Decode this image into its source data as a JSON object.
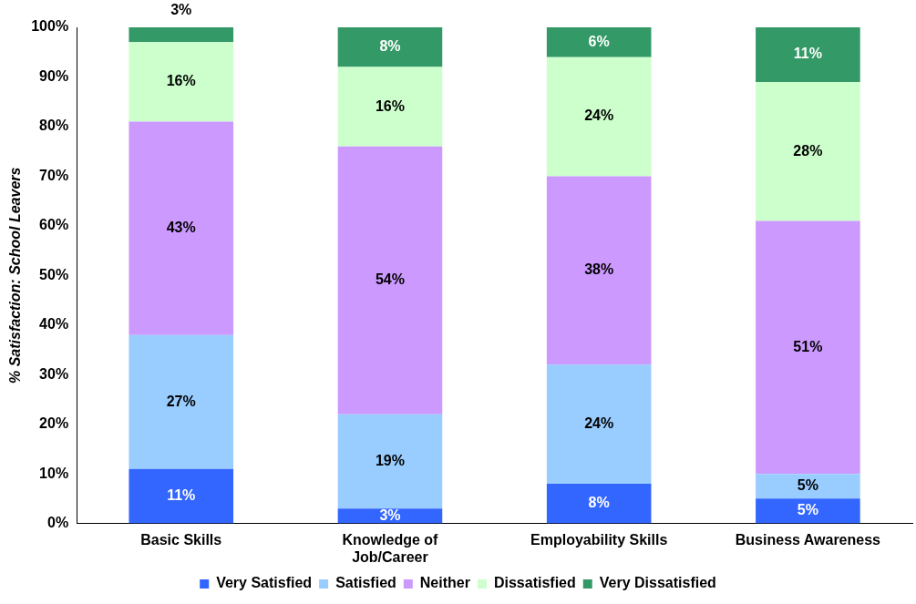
{
  "chart_data": {
    "type": "bar",
    "stacked": true,
    "ylabel": "% Satisfaction: School Leavers",
    "categories": [
      "Basic Skills",
      "Knowledge of Job/Career",
      "Employability Skills",
      "Business Awareness"
    ],
    "series": [
      {
        "name": "Very Satisfied",
        "color": "#3366ff",
        "values": [
          11,
          3,
          8,
          5
        ],
        "value_labels": [
          "11%",
          "3%",
          "8%",
          "5%"
        ]
      },
      {
        "name": "Satisfied",
        "color": "#99ccff",
        "values": [
          27,
          19,
          24,
          5
        ],
        "value_labels": [
          "27%",
          "19%",
          "24%",
          "5%"
        ]
      },
      {
        "name": "Neither",
        "color": "#cc99ff",
        "values": [
          43,
          54,
          38,
          51
        ],
        "value_labels": [
          "43%",
          "54%",
          "38%",
          "51%"
        ]
      },
      {
        "name": "Dissatisfied",
        "color": "#ccffcc",
        "values": [
          16,
          16,
          24,
          28
        ],
        "value_labels": [
          "16%",
          "16%",
          "24%",
          "28%"
        ]
      },
      {
        "name": "Very Dissatisfied",
        "color": "#339966",
        "values": [
          3,
          8,
          6,
          11
        ],
        "value_labels": [
          "3%",
          "8%",
          "6%",
          "11%"
        ]
      }
    ],
    "ylim": [
      0,
      100
    ],
    "yticks": [
      {
        "value": 0,
        "label": "0%"
      },
      {
        "value": 10,
        "label": "10%"
      },
      {
        "value": 20,
        "label": "20%"
      },
      {
        "value": 30,
        "label": "30%"
      },
      {
        "value": 40,
        "label": "40%"
      },
      {
        "value": 50,
        "label": "50%"
      },
      {
        "value": 60,
        "label": "60%"
      },
      {
        "value": 70,
        "label": "70%"
      },
      {
        "value": 80,
        "label": "80%"
      },
      {
        "value": 90,
        "label": "90%"
      },
      {
        "value": 100,
        "label": "100%"
      }
    ],
    "grid": false,
    "legend": "bottom"
  }
}
